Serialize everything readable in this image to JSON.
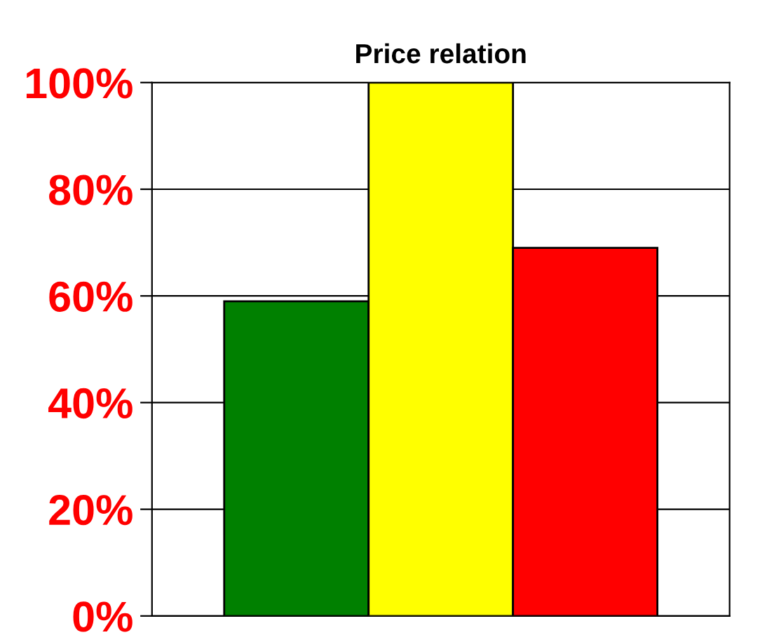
{
  "chart_data": {
    "type": "bar",
    "title": "Price relation",
    "categories": [
      null,
      null,
      null
    ],
    "values": [
      59,
      100,
      69
    ],
    "colors": [
      "#008000",
      "#ffff00",
      "#ff0000"
    ],
    "ylim": [
      0,
      100
    ],
    "yticks": [
      {
        "value": 0,
        "label": "0%"
      },
      {
        "value": 20,
        "label": "20%"
      },
      {
        "value": 40,
        "label": "40%"
      },
      {
        "value": 60,
        "label": "60%"
      },
      {
        "value": 80,
        "label": "80%"
      },
      {
        "value": 100,
        "label": "100%"
      }
    ],
    "grid": "y",
    "tick_labels": "y"
  }
}
